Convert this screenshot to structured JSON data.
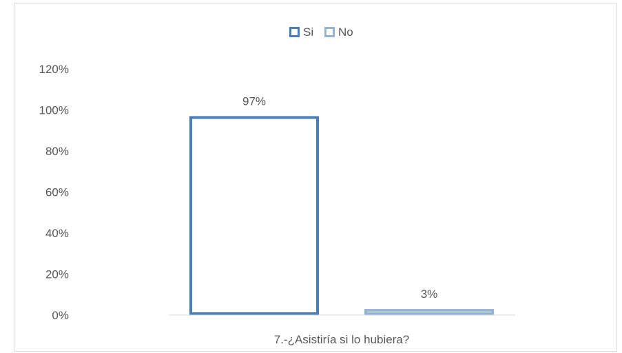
{
  "chart_data": {
    "type": "bar",
    "categories": [
      "7.-¿Asistiría si lo hubiera?"
    ],
    "series": [
      {
        "name": "Si",
        "values": [
          97
        ],
        "label": "97%",
        "color": "#4a7ebb"
      },
      {
        "name": "No",
        "values": [
          3
        ],
        "label": "3%",
        "color": "#95b3d7"
      }
    ],
    "ylim": [
      0,
      120
    ],
    "yticks": [
      "0%",
      "20%",
      "40%",
      "60%",
      "80%",
      "100%",
      "120%"
    ],
    "ytick_values": [
      0,
      20,
      40,
      60,
      80,
      100,
      120
    ],
    "legend_position": "top-center",
    "grid": false,
    "bar_style": "outline"
  }
}
